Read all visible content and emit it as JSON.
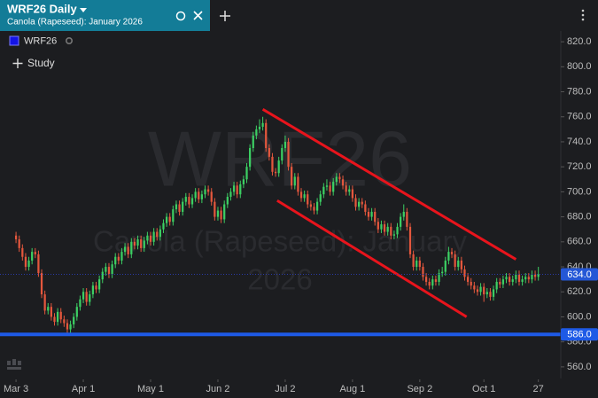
{
  "header": {
    "title": "WRF26 Daily",
    "subtitle": "Canola (Rapeseed): January 2026"
  },
  "chart_data": {
    "type": "candlestick",
    "legend": "WRF26",
    "study": "Study",
    "watermark": [
      "WRF26",
      "Canola (Rapeseed): January",
      "2026"
    ],
    "up_color": "#3ccf63",
    "down_color": "#e4573d",
    "xlim": [
      -5,
      170
    ],
    "ylim": [
      550,
      830
    ],
    "xticks": [
      {
        "value": 0,
        "label": "Mar 3"
      },
      {
        "value": 21,
        "label": "Apr 1"
      },
      {
        "value": 42,
        "label": "May 1"
      },
      {
        "value": 63,
        "label": "Jun 2"
      },
      {
        "value": 84,
        "label": "Jul 2"
      },
      {
        "value": 105,
        "label": "Aug 1"
      },
      {
        "value": 126,
        "label": "Sep 2"
      },
      {
        "value": 146,
        "label": "Oct 1"
      },
      {
        "value": 163,
        "label": "27"
      }
    ],
    "yticks": [
      {
        "value": 560,
        "label": "560.0"
      },
      {
        "value": 580,
        "label": "580.0"
      },
      {
        "value": 600,
        "label": "600.0"
      },
      {
        "value": 620,
        "label": "620.0"
      },
      {
        "value": 640,
        "label": "640.0"
      },
      {
        "value": 660,
        "label": "660.0"
      },
      {
        "value": 680,
        "label": "680.0"
      },
      {
        "value": 700,
        "label": "700.0"
      },
      {
        "value": 720,
        "label": "720.0"
      },
      {
        "value": 740,
        "label": "740.0"
      },
      {
        "value": 760,
        "label": "760.0"
      },
      {
        "value": 780,
        "label": "780.0"
      },
      {
        "value": 800,
        "label": "800.0"
      },
      {
        "value": 820,
        "label": "820.0"
      }
    ],
    "last_price": {
      "value": 634,
      "label": "634.0",
      "color": "#2457d6"
    },
    "hlines": [
      {
        "value": 586,
        "label": "586.0",
        "color": "#1e5ae6"
      }
    ],
    "trendlines": [
      {
        "x": [
          77,
          156
        ],
        "y": [
          766,
          646
        ],
        "color": "#e8141c"
      },
      {
        "x": [
          81.5,
          140.6
        ],
        "y": [
          693,
          600
        ],
        "color": "#e8141c"
      }
    ],
    "ohlc": [
      [
        665,
        668,
        659,
        662
      ],
      [
        662,
        665,
        652,
        655
      ],
      [
        655,
        658,
        645,
        648
      ],
      [
        648,
        651,
        637,
        640
      ],
      [
        640,
        648,
        637,
        645
      ],
      [
        645,
        655,
        642,
        652
      ],
      [
        652,
        655,
        647,
        650
      ],
      [
        650,
        653,
        632,
        635
      ],
      [
        635,
        638,
        615,
        618
      ],
      [
        618,
        621,
        602,
        605
      ],
      [
        605,
        611,
        602,
        608
      ],
      [
        608,
        611,
        597,
        600
      ],
      [
        600,
        603,
        593,
        596
      ],
      [
        596,
        607,
        593,
        604
      ],
      [
        604,
        607,
        595,
        598
      ],
      [
        598,
        601,
        592,
        595
      ],
      [
        595,
        598,
        587,
        590
      ],
      [
        590,
        597,
        587,
        594
      ],
      [
        594,
        603,
        591,
        600
      ],
      [
        600,
        611,
        597,
        608
      ],
      [
        608,
        617,
        605,
        614
      ],
      [
        614,
        623,
        611,
        620
      ],
      [
        620,
        623,
        609,
        612
      ],
      [
        612,
        621,
        609,
        618
      ],
      [
        618,
        628,
        615,
        625
      ],
      [
        625,
        628,
        619,
        622
      ],
      [
        622,
        633,
        619,
        630
      ],
      [
        630,
        639,
        627,
        636
      ],
      [
        636,
        643,
        633,
        640
      ],
      [
        640,
        643,
        631,
        634
      ],
      [
        634,
        645,
        631,
        642
      ],
      [
        642,
        651,
        639,
        648
      ],
      [
        648,
        651,
        642,
        645
      ],
      [
        645,
        655,
        642,
        652
      ],
      [
        652,
        659,
        649,
        656
      ],
      [
        656,
        659,
        647,
        650
      ],
      [
        650,
        663,
        647,
        660
      ],
      [
        660,
        663,
        654,
        657
      ],
      [
        657,
        665,
        654,
        662
      ],
      [
        662,
        665,
        652,
        655
      ],
      [
        655,
        664,
        652,
        661
      ],
      [
        661,
        668,
        658,
        665
      ],
      [
        665,
        668,
        657,
        660
      ],
      [
        660,
        671,
        657,
        668
      ],
      [
        668,
        671,
        661,
        664
      ],
      [
        664,
        673,
        661,
        670
      ],
      [
        670,
        678,
        667,
        675
      ],
      [
        675,
        683,
        672,
        680
      ],
      [
        680,
        683,
        673,
        676
      ],
      [
        676,
        689,
        673,
        686
      ],
      [
        686,
        693,
        683,
        690
      ],
      [
        690,
        693,
        681,
        684
      ],
      [
        684,
        695,
        681,
        692
      ],
      [
        692,
        699,
        689,
        696
      ],
      [
        696,
        699,
        687,
        690
      ],
      [
        690,
        698,
        687,
        695
      ],
      [
        695,
        703,
        692,
        700
      ],
      [
        700,
        703,
        691,
        694
      ],
      [
        694,
        701,
        691,
        698
      ],
      [
        698,
        705,
        695,
        702
      ],
      [
        702,
        705,
        697,
        700
      ],
      [
        700,
        703,
        689,
        692
      ],
      [
        692,
        695,
        677,
        680
      ],
      [
        680,
        688,
        677,
        685
      ],
      [
        685,
        688,
        675,
        678
      ],
      [
        678,
        693,
        675,
        690
      ],
      [
        690,
        699,
        687,
        696
      ],
      [
        696,
        703,
        693,
        700
      ],
      [
        700,
        708,
        697,
        705
      ],
      [
        705,
        708,
        695,
        698
      ],
      [
        698,
        709,
        695,
        706
      ],
      [
        706,
        713,
        703,
        710
      ],
      [
        710,
        723,
        707,
        720
      ],
      [
        720,
        738,
        717,
        735
      ],
      [
        735,
        748,
        732,
        745
      ],
      [
        745,
        753,
        742,
        750
      ],
      [
        750,
        758,
        747,
        752
      ],
      [
        752,
        760,
        749,
        755
      ],
      [
        755,
        758,
        732,
        735
      ],
      [
        735,
        738,
        725,
        728
      ],
      [
        728,
        731,
        713,
        716
      ],
      [
        716,
        719,
        712,
        715
      ],
      [
        715,
        728,
        712,
        725
      ],
      [
        725,
        738,
        722,
        735
      ],
      [
        735,
        745,
        732,
        740
      ],
      [
        740,
        743,
        717,
        720
      ],
      [
        720,
        723,
        702,
        705
      ],
      [
        705,
        715,
        702,
        712
      ],
      [
        712,
        715,
        697,
        700
      ],
      [
        700,
        703,
        692,
        695
      ],
      [
        695,
        701,
        692,
        698
      ],
      [
        698,
        701,
        687,
        690
      ],
      [
        690,
        693,
        685,
        688
      ],
      [
        688,
        691,
        682,
        685
      ],
      [
        685,
        695,
        682,
        692
      ],
      [
        692,
        701,
        689,
        698
      ],
      [
        698,
        707,
        695,
        704
      ],
      [
        704,
        710,
        701,
        705
      ],
      [
        705,
        708,
        697,
        700
      ],
      [
        700,
        711,
        697,
        708
      ],
      [
        708,
        715,
        705,
        712
      ],
      [
        712,
        715,
        707,
        710
      ],
      [
        710,
        713,
        702,
        705
      ],
      [
        705,
        708,
        697,
        700
      ],
      [
        700,
        705,
        697,
        702
      ],
      [
        702,
        705,
        692,
        695
      ],
      [
        695,
        698,
        685,
        688
      ],
      [
        688,
        695,
        685,
        692
      ],
      [
        692,
        695,
        687,
        690
      ],
      [
        690,
        693,
        681,
        684
      ],
      [
        684,
        687,
        677,
        680
      ],
      [
        680,
        687,
        677,
        684
      ],
      [
        684,
        687,
        673,
        676
      ],
      [
        676,
        679,
        667,
        670
      ],
      [
        670,
        677,
        667,
        674
      ],
      [
        674,
        677,
        665,
        668
      ],
      [
        668,
        675,
        665,
        672
      ],
      [
        672,
        675,
        662,
        665
      ],
      [
        665,
        669,
        662,
        666
      ],
      [
        666,
        675,
        663,
        672
      ],
      [
        672,
        683,
        669,
        680
      ],
      [
        680,
        690,
        677,
        684
      ],
      [
        684,
        687,
        669,
        672
      ],
      [
        672,
        675,
        647,
        650
      ],
      [
        650,
        653,
        637,
        640
      ],
      [
        640,
        648,
        637,
        645
      ],
      [
        645,
        648,
        637,
        640
      ],
      [
        640,
        643,
        629,
        632
      ],
      [
        632,
        635,
        625,
        628
      ],
      [
        628,
        631,
        622,
        625
      ],
      [
        625,
        633,
        622,
        630
      ],
      [
        630,
        633,
        625,
        628
      ],
      [
        628,
        638,
        625,
        635
      ],
      [
        635,
        640,
        632,
        636
      ],
      [
        636,
        648,
        633,
        645
      ],
      [
        645,
        656,
        642,
        652
      ],
      [
        652,
        655,
        647,
        650
      ],
      [
        650,
        653,
        637,
        640
      ],
      [
        640,
        648,
        637,
        645
      ],
      [
        645,
        648,
        635,
        638
      ],
      [
        638,
        641,
        629,
        632
      ],
      [
        632,
        635,
        625,
        628
      ],
      [
        628,
        631,
        622,
        625
      ],
      [
        625,
        628,
        619,
        622
      ],
      [
        622,
        625,
        617,
        620
      ],
      [
        620,
        627,
        617,
        624
      ],
      [
        624,
        627,
        612,
        618
      ],
      [
        618,
        623,
        615,
        620
      ],
      [
        620,
        623,
        613,
        616
      ],
      [
        616,
        625,
        613,
        622
      ],
      [
        622,
        631,
        619,
        628
      ],
      [
        628,
        631,
        623,
        626
      ],
      [
        626,
        633,
        623,
        630
      ],
      [
        630,
        635,
        627,
        632
      ],
      [
        632,
        635,
        625,
        628
      ],
      [
        628,
        633,
        625,
        630
      ],
      [
        630,
        637,
        627,
        634
      ],
      [
        634,
        637,
        625,
        628
      ],
      [
        628,
        633,
        625,
        630
      ],
      [
        630,
        635,
        627,
        632
      ],
      [
        632,
        635,
        627,
        630
      ],
      [
        630,
        637,
        627,
        634
      ],
      [
        634,
        637,
        629,
        632
      ],
      [
        632,
        640,
        629,
        634
      ]
    ]
  }
}
